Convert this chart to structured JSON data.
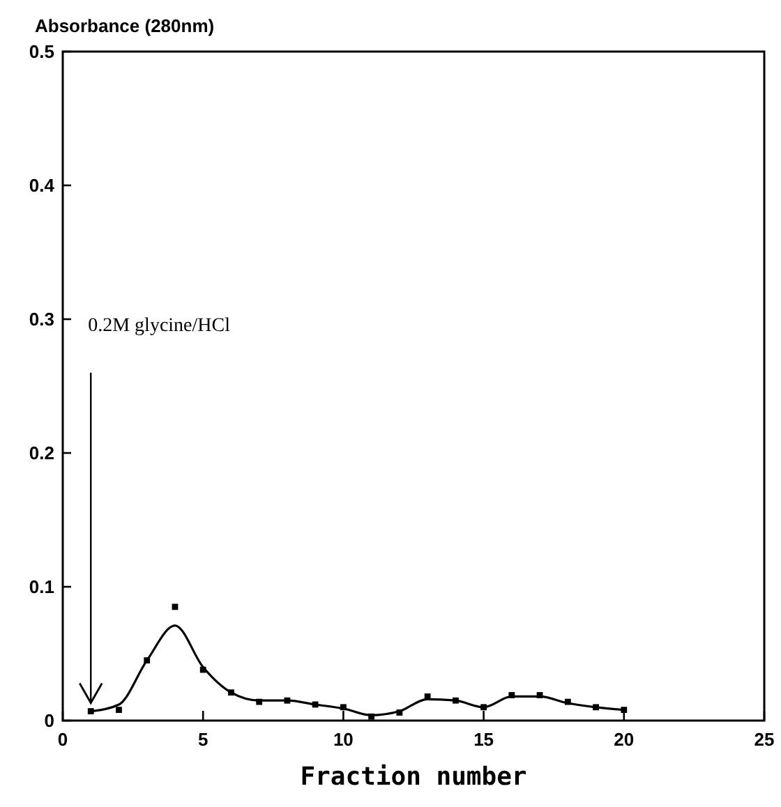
{
  "chart_data": {
    "type": "scatter",
    "xlabel": "Fraction number",
    "ylabel": "Absorbance (280nm)",
    "xlim": [
      0,
      25
    ],
    "ylim": [
      0,
      0.5
    ],
    "xticks": [
      0,
      5,
      10,
      15,
      20,
      25
    ],
    "yticks": [
      0,
      0.1,
      0.2,
      0.3,
      0.4,
      0.5
    ],
    "grid": false,
    "series": [
      {
        "color": "#000000",
        "marker": "square",
        "x": [
          1,
          2,
          3,
          4,
          5,
          6,
          7,
          8,
          9,
          10,
          11,
          12,
          13,
          14,
          15,
          16,
          17,
          18,
          19,
          20
        ],
        "values": [
          0.007,
          0.008,
          0.045,
          0.085,
          0.038,
          0.021,
          0.014,
          0.015,
          0.012,
          0.01,
          0.003,
          0.006,
          0.018,
          0.015,
          0.01,
          0.019,
          0.019,
          0.014,
          0.01,
          0.008
        ]
      },
      {
        "type": "line",
        "color": "#000000",
        "marker": "none",
        "line_style": "solid",
        "x": [
          1,
          2,
          3,
          4,
          5,
          6,
          7,
          8,
          9,
          10,
          11,
          12,
          13,
          14,
          15,
          16,
          17,
          18,
          19,
          20
        ],
        "values": [
          0.007,
          0.012,
          0.045,
          0.071,
          0.04,
          0.021,
          0.015,
          0.015,
          0.012,
          0.009,
          0.004,
          0.007,
          0.016,
          0.015,
          0.01,
          0.018,
          0.018,
          0.013,
          0.01,
          0.008
        ]
      }
    ],
    "annotations": [
      "0.2M glycine/HCl"
    ]
  }
}
